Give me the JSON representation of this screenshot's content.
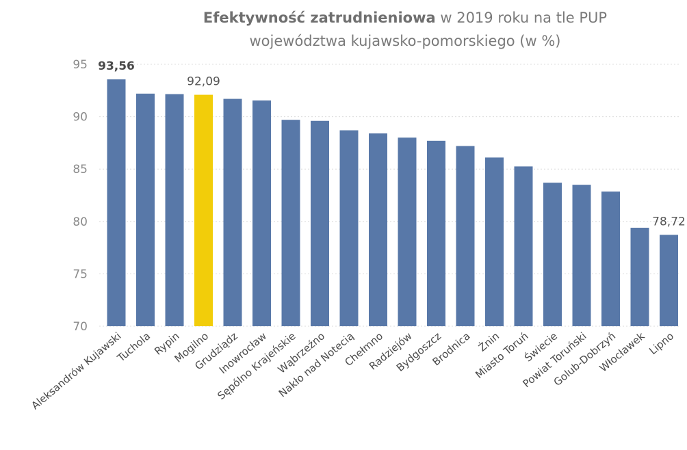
{
  "chart_data": {
    "type": "bar",
    "title_bold": "Efektywność zatrudnieniowa",
    "title_rest": " w 2019 roku na tle PUP",
    "title_line2": "województwa kujawsko-pomorskiego (w %)",
    "xlabel": "",
    "ylabel": "",
    "ylim": [
      70,
      95
    ],
    "yticks": [
      70,
      75,
      80,
      85,
      90,
      95
    ],
    "grid": true,
    "categories": [
      "Aleksandrów Kujawski",
      "Tuchola",
      "Rypin",
      "Mogilno",
      "Grudziądz",
      "Inowrocław",
      "Sępólno Krajeńskie",
      "Wąbrzeźno",
      "Nakło nad Notecią",
      "Chełmno",
      "Radziejów",
      "Bydgoszcz",
      "Brodnica",
      "Żnin",
      "Miasto Toruń",
      "Świecie",
      "Powiat Toruński",
      "Golub-Dobrzyń",
      "Włocławek",
      "Lipno"
    ],
    "values": [
      93.56,
      92.2,
      92.15,
      92.09,
      91.7,
      91.55,
      89.7,
      89.6,
      88.7,
      88.4,
      88.0,
      87.7,
      87.2,
      86.1,
      85.25,
      83.7,
      83.5,
      82.85,
      79.4,
      78.72
    ],
    "data_labels": [
      {
        "index": 0,
        "text": "93,56",
        "bold": true
      },
      {
        "index": 3,
        "text": "92,09",
        "bold": false
      },
      {
        "index": 19,
        "text": "78,72",
        "bold": false
      }
    ],
    "highlight_index": 3,
    "colors": {
      "bar": "#5878a8",
      "highlight": "#f2cd0a",
      "grid": "#dcdcdc"
    }
  }
}
